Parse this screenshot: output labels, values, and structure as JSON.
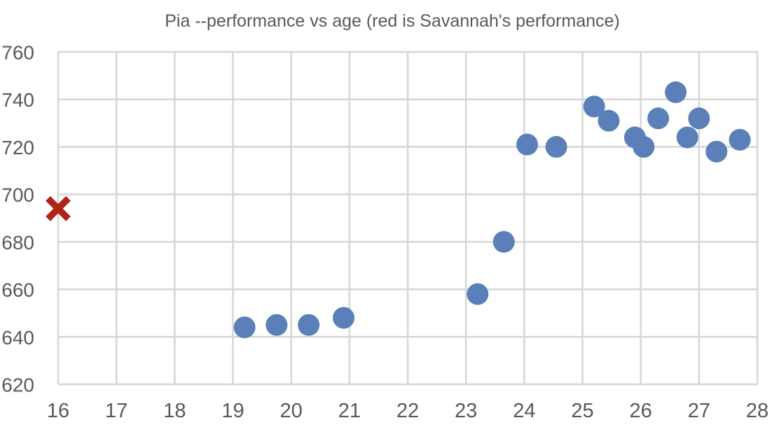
{
  "chart_data": {
    "type": "scatter",
    "title": "Pia --performance vs age  (red is Savannah's performance)",
    "xlabel": "",
    "ylabel": "",
    "xlim": [
      16,
      28
    ],
    "ylim": [
      620,
      760
    ],
    "xticks": [
      16,
      17,
      18,
      19,
      20,
      21,
      22,
      23,
      24,
      25,
      26,
      27,
      28
    ],
    "yticks": [
      620,
      640,
      660,
      680,
      700,
      720,
      740,
      760
    ],
    "grid": true,
    "legend_position": "none",
    "colors": {
      "pia_blue": "#5B80B9",
      "savannah_red": "#B02318",
      "gridline": "#D6D6D6",
      "text": "#595959",
      "background": "#FFFFFF"
    },
    "series": [
      {
        "name": "Pia performance",
        "marker": "circle",
        "color": "#5B80B9",
        "points": [
          [
            19.2,
            644
          ],
          [
            19.75,
            645
          ],
          [
            20.3,
            645
          ],
          [
            20.9,
            648
          ],
          [
            23.2,
            658
          ],
          [
            23.65,
            680
          ],
          [
            24.05,
            721
          ],
          [
            24.55,
            720
          ],
          [
            25.2,
            737
          ],
          [
            25.45,
            731
          ],
          [
            25.9,
            724
          ],
          [
            26.05,
            720
          ],
          [
            26.3,
            732
          ],
          [
            26.6,
            743
          ],
          [
            26.8,
            724
          ],
          [
            27.0,
            732
          ],
          [
            27.3,
            718
          ],
          [
            27.7,
            723
          ]
        ]
      },
      {
        "name": "Savannah's performance",
        "marker": "x",
        "color": "#B02318",
        "points": [
          [
            16,
            694
          ]
        ]
      }
    ]
  }
}
